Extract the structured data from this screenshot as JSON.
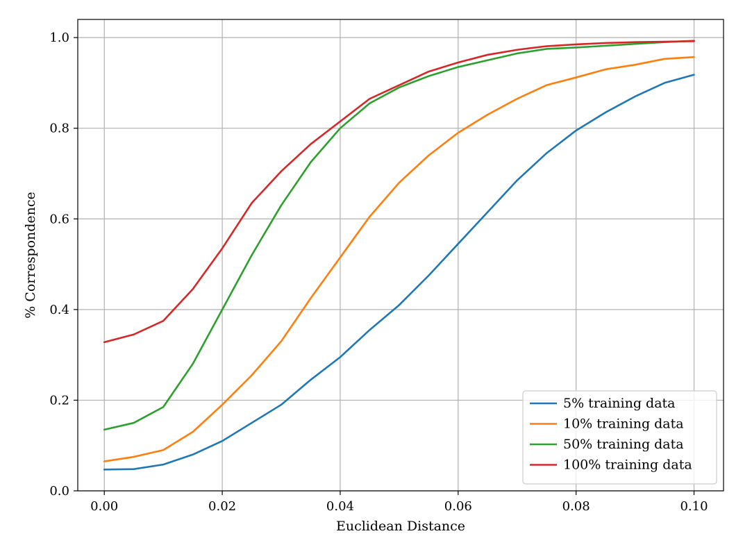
{
  "chart_data": {
    "type": "line",
    "xlabel": "Euclidean Distance",
    "ylabel": "% Correspondence",
    "xlim": [
      -0.0045,
      0.105
    ],
    "ylim": [
      -0.0,
      1.04
    ],
    "xticks": [
      0.0,
      0.02,
      0.04,
      0.06,
      0.08,
      0.1
    ],
    "xtick_labels": [
      "0.00",
      "0.02",
      "0.04",
      "0.06",
      "0.08",
      "0.10"
    ],
    "yticks": [
      0.0,
      0.2,
      0.4,
      0.6,
      0.8,
      1.0
    ],
    "ytick_labels": [
      "0.0",
      "0.2",
      "0.4",
      "0.6",
      "0.8",
      "1.0"
    ],
    "grid": true,
    "legend_position": "bottom-right",
    "x": [
      0.0,
      0.005,
      0.01,
      0.015,
      0.02,
      0.025,
      0.03,
      0.035,
      0.04,
      0.045,
      0.05,
      0.055,
      0.06,
      0.065,
      0.07,
      0.075,
      0.08,
      0.085,
      0.09,
      0.095,
      0.1
    ],
    "series": [
      {
        "name": "5% training data",
        "color": "#1f77b4",
        "values": [
          0.047,
          0.048,
          0.058,
          0.08,
          0.11,
          0.15,
          0.19,
          0.245,
          0.295,
          0.355,
          0.41,
          0.475,
          0.545,
          0.615,
          0.685,
          0.745,
          0.795,
          0.835,
          0.87,
          0.9,
          0.918
        ]
      },
      {
        "name": "10% training data",
        "color": "#ff7f0e",
        "values": [
          0.065,
          0.075,
          0.09,
          0.13,
          0.19,
          0.255,
          0.33,
          0.425,
          0.515,
          0.605,
          0.68,
          0.74,
          0.79,
          0.83,
          0.865,
          0.895,
          0.912,
          0.93,
          0.94,
          0.953,
          0.957
        ]
      },
      {
        "name": "50% training data",
        "color": "#2ca02c",
        "values": [
          0.135,
          0.15,
          0.185,
          0.28,
          0.4,
          0.52,
          0.63,
          0.725,
          0.8,
          0.855,
          0.89,
          0.915,
          0.935,
          0.95,
          0.965,
          0.975,
          0.978,
          0.982,
          0.986,
          0.99,
          0.993
        ]
      },
      {
        "name": "100% training data",
        "color": "#d62728",
        "values": [
          0.328,
          0.345,
          0.375,
          0.445,
          0.535,
          0.635,
          0.705,
          0.765,
          0.815,
          0.865,
          0.895,
          0.925,
          0.945,
          0.962,
          0.973,
          0.981,
          0.985,
          0.988,
          0.99,
          0.991,
          0.992
        ]
      }
    ]
  }
}
